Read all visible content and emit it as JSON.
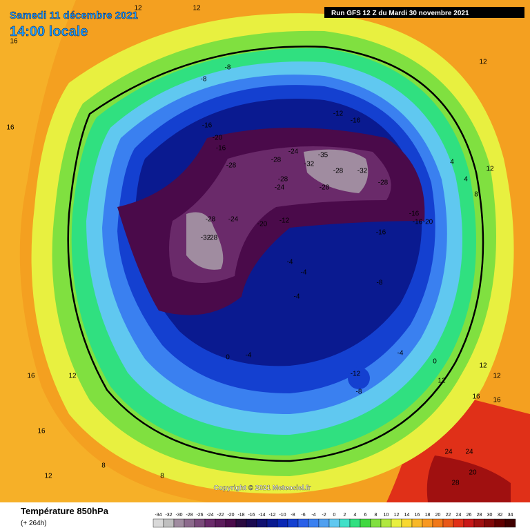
{
  "header": {
    "date": "Samedi 11 décembre 2021",
    "time": "14:00 locale",
    "run": "Run GFS 12 Z du Mardi 30 novembre 2021"
  },
  "footer": {
    "copyright": "Copyright © 2021 Meteociel.fr"
  },
  "legend": {
    "title": "Température 850hPa",
    "subtitle": "(+ 264h)",
    "ticks": [
      -34,
      -32,
      -30,
      -28,
      -26,
      -24,
      -22,
      -20,
      -18,
      -16,
      -14,
      -12,
      -10,
      -8,
      -6,
      -4,
      -2,
      0,
      2,
      4,
      6,
      8,
      10,
      12,
      14,
      16,
      18,
      20,
      22,
      24,
      26,
      28,
      30,
      32,
      34
    ],
    "colors": [
      "#d9d9d9",
      "#bfbfbf",
      "#a08ca0",
      "#8c6a8c",
      "#7a4a7a",
      "#6a2a6a",
      "#5a1a5a",
      "#4a0a4a",
      "#2a0a40",
      "#1a0a50",
      "#101070",
      "#0a1a90",
      "#0a28b4",
      "#1440d0",
      "#2a60e8",
      "#3a80f0",
      "#50a0f0",
      "#60c8f0",
      "#40e0c8",
      "#30e080",
      "#40d840",
      "#80e040",
      "#b0e840",
      "#e8f040",
      "#f8d830",
      "#f8b828",
      "#f89820",
      "#f07818",
      "#e85818",
      "#e03018",
      "#c81818",
      "#a01010",
      "#800808",
      "#600000",
      "#400000"
    ]
  },
  "map": {
    "labels": [
      "12",
      "12",
      "16",
      "16",
      "16",
      "12",
      "12",
      "-8",
      "-8",
      "-12",
      "-16",
      "-16",
      "-20",
      "-16",
      "-28",
      "-24",
      "-28",
      "-28",
      "-32",
      "-28",
      "-24",
      "-28",
      "-32",
      "-35",
      "-28",
      "-12",
      "-16",
      "-16",
      "-20",
      "-28",
      "-32",
      "-28",
      "-24",
      "-20",
      "-16",
      "-4",
      "-4",
      "-8",
      "-4",
      "0",
      "-4",
      "-12",
      "-8",
      "-4",
      "0",
      "4",
      "4",
      "8",
      "12",
      "12",
      "12",
      "16",
      "16",
      "12",
      "24",
      "24",
      "20",
      "28",
      "16",
      "12",
      "8",
      "8"
    ]
  }
}
